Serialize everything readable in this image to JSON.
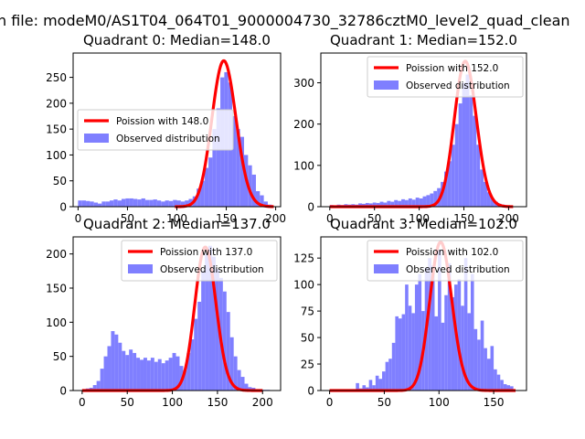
{
  "figure": {
    "suptitle": "n file: modeM0/AS1T04_064T01_9000004730_32786cztM0_level2_quad_clean"
  },
  "chart_data": [
    {
      "type": "bar",
      "title": "Quadrant 0: Median=148.0",
      "median": 148.0,
      "xlim": [
        -5,
        205
      ],
      "ylim": [
        0,
        297
      ],
      "xticks": [
        0,
        50,
        100,
        150,
        200
      ],
      "yticks": [
        0,
        50,
        100,
        150,
        200,
        250
      ],
      "legend_position": "center-left",
      "poisson_label": "Poission with 148.0",
      "observed_label": "Observed distribution",
      "bin_width": 4,
      "bin_starts": [
        0,
        4,
        8,
        12,
        16,
        20,
        24,
        28,
        32,
        36,
        40,
        44,
        48,
        52,
        56,
        60,
        64,
        68,
        72,
        76,
        80,
        84,
        88,
        92,
        96,
        100,
        104,
        108,
        112,
        116,
        120,
        124,
        128,
        132,
        136,
        140,
        144,
        148,
        152,
        156,
        160,
        164,
        168,
        172,
        176,
        180,
        184,
        188,
        192
      ],
      "counts": [
        12,
        12,
        11,
        10,
        8,
        6,
        10,
        10,
        12,
        14,
        12,
        15,
        16,
        16,
        15,
        14,
        16,
        13,
        13,
        14,
        12,
        10,
        12,
        11,
        13,
        12,
        10,
        12,
        15,
        20,
        35,
        50,
        75,
        95,
        150,
        190,
        250,
        260,
        240,
        175,
        150,
        135,
        100,
        80,
        62,
        30,
        22,
        10,
        4
      ],
      "poisson_scale": 282,
      "poisson_range": [
        98,
        198
      ]
    },
    {
      "type": "bar",
      "title": "Quadrant 1: Median=152.0",
      "median": 152.0,
      "xlim": [
        -10,
        220
      ],
      "ylim": [
        0,
        372
      ],
      "xticks": [
        0,
        50,
        100,
        150,
        200
      ],
      "yticks": [
        0,
        100,
        200,
        300
      ],
      "legend_position": "top-right",
      "poisson_label": "Poission with 152.0",
      "observed_label": "Observed distribution",
      "bin_width": 4,
      "bin_starts": [
        0,
        4,
        8,
        12,
        16,
        20,
        24,
        28,
        32,
        36,
        40,
        44,
        48,
        52,
        56,
        60,
        64,
        68,
        72,
        76,
        80,
        84,
        88,
        92,
        96,
        100,
        104,
        108,
        112,
        116,
        120,
        124,
        128,
        132,
        136,
        140,
        144,
        148,
        152,
        156,
        160,
        164,
        168,
        172,
        176,
        180,
        184,
        188,
        192,
        196,
        200,
        204
      ],
      "counts": [
        4,
        3,
        5,
        4,
        6,
        5,
        6,
        5,
        8,
        7,
        9,
        8,
        10,
        9,
        12,
        10,
        14,
        12,
        16,
        14,
        18,
        16,
        20,
        17,
        22,
        20,
        25,
        28,
        32,
        38,
        45,
        60,
        85,
        110,
        150,
        200,
        250,
        300,
        320,
        270,
        220,
        150,
        90,
        60,
        35,
        20,
        12,
        7,
        5,
        3,
        2,
        1
      ],
      "poisson_scale": 352,
      "poisson_range": [
        0,
        205
      ]
    },
    {
      "type": "bar",
      "title": "Quadrant 2: Median=137.0",
      "median": 137.0,
      "xlim": [
        -10,
        220
      ],
      "ylim": [
        0,
        225
      ],
      "xticks": [
        0,
        50,
        100,
        150,
        200
      ],
      "yticks": [
        0,
        50,
        100,
        150,
        200
      ],
      "legend_position": "top-right",
      "poisson_label": "Poission with 137.0",
      "observed_label": "Observed distribution",
      "bin_width": 4,
      "bin_starts": [
        0,
        4,
        8,
        12,
        16,
        20,
        24,
        28,
        32,
        36,
        40,
        44,
        48,
        52,
        56,
        60,
        64,
        68,
        72,
        76,
        80,
        84,
        88,
        92,
        96,
        100,
        104,
        108,
        112,
        116,
        120,
        124,
        128,
        132,
        136,
        140,
        144,
        148,
        152,
        156,
        160,
        164,
        168,
        172,
        176,
        180,
        184,
        188,
        192,
        196,
        200,
        204
      ],
      "counts": [
        2,
        3,
        4,
        8,
        14,
        32,
        50,
        65,
        87,
        82,
        70,
        58,
        52,
        60,
        55,
        48,
        45,
        48,
        44,
        48,
        42,
        46,
        40,
        44,
        48,
        55,
        50,
        36,
        30,
        55,
        75,
        105,
        130,
        175,
        200,
        212,
        196,
        178,
        165,
        145,
        115,
        78,
        50,
        30,
        20,
        10,
        5,
        4,
        2,
        2,
        1,
        1
      ],
      "poisson_scale": 210,
      "poisson_range": [
        0,
        200
      ]
    },
    {
      "type": "bar",
      "title": "Quadrant 3: Median=102.0",
      "median": 102.0,
      "xlim": [
        -8,
        180
      ],
      "ylim": [
        0,
        145
      ],
      "xticks": [
        0,
        50,
        100,
        150
      ],
      "yticks": [
        0,
        25,
        50,
        75,
        100,
        125
      ],
      "legend_position": "top-right",
      "poisson_label": "Poission with 102.0",
      "observed_label": "Observed distribution",
      "bin_width": 3,
      "bin_starts": [
        0,
        3,
        6,
        9,
        12,
        15,
        18,
        21,
        24,
        27,
        30,
        33,
        36,
        39,
        42,
        45,
        48,
        51,
        54,
        57,
        60,
        63,
        66,
        69,
        72,
        75,
        78,
        81,
        84,
        87,
        90,
        93,
        96,
        99,
        102,
        105,
        108,
        111,
        114,
        117,
        120,
        123,
        126,
        129,
        132,
        135,
        138,
        141,
        144,
        147,
        150,
        153,
        156,
        159,
        162,
        165
      ],
      "counts": [
        0,
        0,
        0,
        0,
        0,
        0,
        0,
        1,
        7,
        2,
        5,
        3,
        10,
        5,
        14,
        11,
        18,
        27,
        30,
        45,
        70,
        68,
        72,
        100,
        80,
        73,
        100,
        110,
        75,
        116,
        125,
        118,
        70,
        133,
        64,
        90,
        120,
        88,
        100,
        105,
        80,
        125,
        73,
        110,
        58,
        48,
        66,
        40,
        30,
        42,
        20,
        15,
        10,
        6,
        5,
        4
      ],
      "poisson_scale": 140,
      "poisson_range": [
        0,
        170
      ]
    }
  ]
}
